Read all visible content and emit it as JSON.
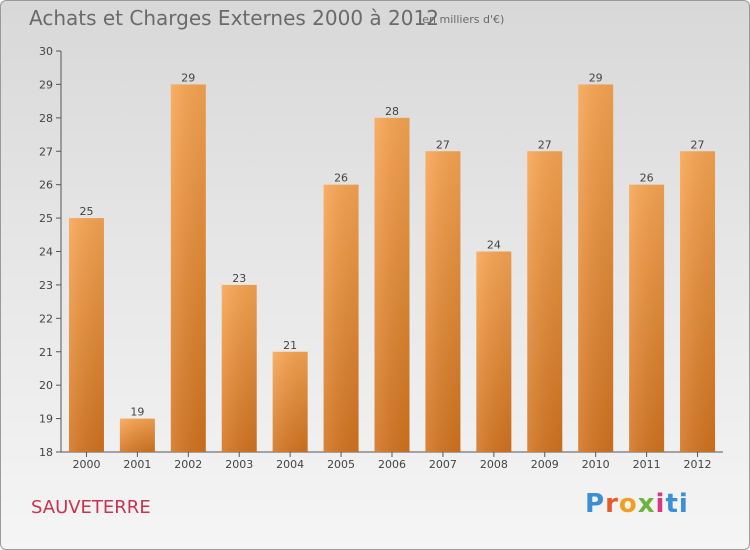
{
  "header": {
    "title": "Achats et Charges Externes 2000 à 2012",
    "subtitle": "(en milliers d'€)"
  },
  "footer": {
    "place_name": "SAUVETERRE",
    "logo_text": "Proxiti"
  },
  "chart_data": {
    "type": "bar",
    "categories": [
      "2000",
      "2001",
      "2002",
      "2003",
      "2004",
      "2005",
      "2006",
      "2007",
      "2008",
      "2009",
      "2010",
      "2011",
      "2012"
    ],
    "values": [
      25,
      19,
      29,
      23,
      21,
      26,
      28,
      27,
      24,
      27,
      29,
      26,
      27
    ],
    "title": "Achats et Charges Externes 2000 à 2012",
    "ylim": [
      18,
      30
    ],
    "yticks": [
      18,
      19,
      20,
      21,
      22,
      23,
      24,
      25,
      26,
      27,
      28,
      29,
      30
    ],
    "grid": false,
    "data_labels": true,
    "colors": {
      "bar_top": "#f7a552",
      "bar_bottom": "#d2731f",
      "axis": "#555555",
      "text": "#444444"
    }
  }
}
